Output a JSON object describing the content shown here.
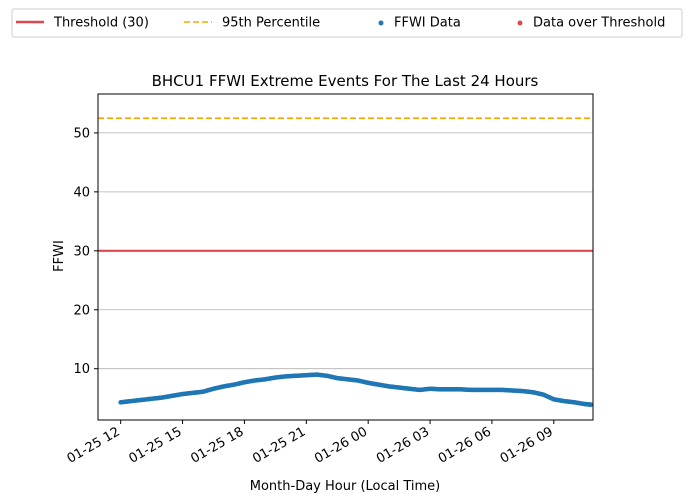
{
  "chart_data": {
    "type": "line",
    "title": "BHCU1 FFWI Extreme Events For The Last 24 Hours",
    "xlabel": "Month-Day Hour (Local Time)",
    "ylabel": "FFWI",
    "x_unit": "hours",
    "xlim": [
      10.9,
      34.9
    ],
    "ylim": [
      1.3,
      56.6
    ],
    "xticks": [
      {
        "value": 12,
        "label": "01-25 12"
      },
      {
        "value": 15,
        "label": "01-25 15"
      },
      {
        "value": 18,
        "label": "01-25 18"
      },
      {
        "value": 21,
        "label": "01-25 21"
      },
      {
        "value": 24,
        "label": "01-26 00"
      },
      {
        "value": 27,
        "label": "01-26 03"
      },
      {
        "value": 30,
        "label": "01-26 06"
      },
      {
        "value": 33,
        "label": "01-26 09"
      }
    ],
    "yticks": [
      {
        "value": 10,
        "label": "10"
      },
      {
        "value": 20,
        "label": "20"
      },
      {
        "value": 30,
        "label": "30"
      },
      {
        "value": 40,
        "label": "40"
      },
      {
        "value": 50,
        "label": "50"
      }
    ],
    "grid": "y-major",
    "legend_position": "top, outside plot, 4 columns",
    "series": [
      {
        "name": "Threshold (30)",
        "kind": "hline",
        "y": 30,
        "color": "#e0474c",
        "style": "solid"
      },
      {
        "name": "95th Percentile",
        "kind": "hline",
        "y": 52.5,
        "color": "#ffa500",
        "style": "dashed"
      },
      {
        "name": "FFWI Data",
        "kind": "scatter",
        "color": "#1f77b4",
        "points": [
          [
            12.0,
            4.3
          ],
          [
            12.5,
            4.5
          ],
          [
            13.0,
            4.7
          ],
          [
            13.5,
            4.9
          ],
          [
            14.0,
            5.1
          ],
          [
            14.5,
            5.4
          ],
          [
            15.0,
            5.7
          ],
          [
            15.5,
            5.9
          ],
          [
            16.0,
            6.1
          ],
          [
            16.5,
            6.6
          ],
          [
            17.0,
            7.0
          ],
          [
            17.5,
            7.3
          ],
          [
            18.0,
            7.7
          ],
          [
            18.5,
            8.0
          ],
          [
            19.0,
            8.2
          ],
          [
            19.5,
            8.5
          ],
          [
            20.0,
            8.7
          ],
          [
            20.5,
            8.8
          ],
          [
            21.0,
            8.9
          ],
          [
            21.5,
            9.0
          ],
          [
            22.0,
            8.8
          ],
          [
            22.5,
            8.4
          ],
          [
            23.0,
            8.2
          ],
          [
            23.5,
            8.0
          ],
          [
            24.0,
            7.6
          ],
          [
            24.5,
            7.3
          ],
          [
            25.0,
            7.0
          ],
          [
            25.5,
            6.8
          ],
          [
            26.0,
            6.6
          ],
          [
            26.5,
            6.4
          ],
          [
            27.0,
            6.6
          ],
          [
            27.5,
            6.5
          ],
          [
            28.0,
            6.5
          ],
          [
            28.5,
            6.5
          ],
          [
            29.0,
            6.4
          ],
          [
            29.5,
            6.4
          ],
          [
            30.0,
            6.4
          ],
          [
            30.5,
            6.4
          ],
          [
            31.0,
            6.3
          ],
          [
            31.5,
            6.2
          ],
          [
            32.0,
            6.0
          ],
          [
            32.5,
            5.6
          ],
          [
            33.0,
            4.8
          ],
          [
            33.5,
            4.5
          ],
          [
            34.0,
            4.3
          ],
          [
            34.5,
            4.0
          ],
          [
            34.8,
            3.9
          ]
        ]
      },
      {
        "name": "Data over Threshold",
        "kind": "scatter",
        "color": "#e0474c",
        "points": []
      }
    ]
  },
  "colors": {
    "threshold": "#e0474c",
    "percentile": "#ffa500",
    "data": "#1f77b4",
    "over_threshold": "#e0474c",
    "grid": "#b0b0b0"
  }
}
